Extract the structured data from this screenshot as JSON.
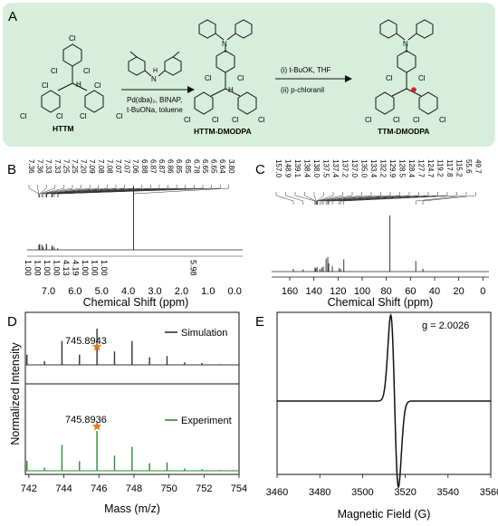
{
  "colors": {
    "panel_a_bg": "#d7eedd",
    "experiment": "#2e8b2e",
    "simulation": "#333333",
    "star": "#e07b1a",
    "radical_dot": "#e02020"
  },
  "panel_a": {
    "label": "A",
    "start_name": "HTTM",
    "mid_name": "HTTM-DMODPA",
    "end_name": "TTM-DMODPA",
    "step1_line1": "Pd(dba)₂, BINAP,",
    "step1_line2": "t-BuONa, toluene",
    "step2_line1": "(i) t-BuOK, THF",
    "step2_line2": "(ii) p-chloranil",
    "atom_cl": "Cl",
    "atom_n": "N",
    "atom_h": "H"
  },
  "panel_b": {
    "label": "B",
    "xlabel": "Chemical Shift (ppm)",
    "top_shifts": [
      "7.36",
      "7.36",
      "7.33",
      "7.33",
      "7.25",
      "7.25",
      "7.20",
      "7.09",
      "7.08",
      "7.08",
      "7.07",
      "7.07",
      "7.06",
      "6.88",
      "6.87",
      "6.87",
      "6.86",
      "6.85",
      "6.85",
      "6.78",
      "6.65",
      "6.65",
      "6.64",
      "3.80"
    ],
    "integrals": [
      "1.00",
      "1.00",
      "1.00",
      "1.00",
      "4.13",
      "4.19",
      "1.00",
      "1.00",
      "1.00",
      "5.98"
    ]
  },
  "panel_c": {
    "label": "C",
    "xlabel": "Chemical Shift (ppm)",
    "top_shifts": [
      "157.0",
      "148.9",
      "139.1",
      "138.4",
      "138.0",
      "137.5",
      "137.4",
      "137.2",
      "137.0",
      "135.0",
      "133.4",
      "132.2",
      "129.9",
      "128.5",
      "128.4",
      "127.7",
      "124.7",
      "119.2",
      "117.8",
      "115.2",
      "55.6",
      "49.7"
    ]
  },
  "panel_d": {
    "label": "D",
    "ylabel": "Normalized Intensity",
    "xlabel": "Mass (m/z)",
    "sim_label": "Simulation",
    "exp_label": "Experiment",
    "sim_peak": "745.8943",
    "exp_peak": "745.8936"
  },
  "panel_e": {
    "label": "E",
    "g_label": "g = 2.0026",
    "xlabel": "Magnetic Field (G)"
  },
  "chart_data": [
    {
      "type": "line",
      "title": "",
      "xlabel": "Chemical Shift (ppm)",
      "ylabel": "",
      "xlim": [
        7.8,
        -0.3
      ],
      "x_ticks": [
        7.0,
        6.0,
        5.0,
        4.0,
        3.0,
        2.0,
        1.0,
        0.0
      ],
      "series": [
        {
          "x": [
            7.36,
            7.33,
            7.25,
            7.2,
            7.08,
            7.07,
            6.87,
            6.85,
            6.78,
            6.65,
            3.8
          ],
          "values": [
            0.08,
            0.09,
            0.08,
            0.05,
            0.1,
            0.07,
            0.05,
            0.07,
            0.04,
            0.03,
            1.0
          ]
        }
      ]
    },
    {
      "type": "line",
      "title": "",
      "xlabel": "Chemical Shift (ppm)",
      "ylabel": "",
      "xlim": [
        175,
        -5
      ],
      "x_ticks": [
        160,
        140,
        120,
        100,
        80,
        60,
        40,
        20,
        0
      ],
      "series": [
        {
          "x": [
            157.0,
            148.9,
            139.1,
            138.4,
            137.4,
            135.0,
            133.4,
            132.2,
            129.9,
            128.5,
            127.7,
            124.7,
            119.2,
            117.8,
            115.2,
            77.0,
            55.6,
            49.7
          ],
          "values": [
            0.05,
            0.04,
            0.07,
            0.06,
            0.08,
            0.05,
            0.07,
            0.09,
            0.23,
            0.26,
            0.15,
            0.1,
            0.06,
            0.05,
            0.22,
            1.0,
            0.19,
            0.05
          ]
        }
      ]
    },
    {
      "type": "bar",
      "title": "",
      "xlabel": "Mass (m/z)",
      "ylabel": "Normalized Intensity",
      "xlim": [
        741.8,
        754
      ],
      "x_ticks": [
        742,
        744,
        746,
        748,
        750,
        752,
        754
      ],
      "series": [
        {
          "name": "Simulation",
          "x": [
            741.89,
            742.89,
            743.89,
            744.89,
            745.89,
            746.89,
            747.89,
            748.89,
            749.89,
            750.89,
            751.89,
            752.89
          ],
          "values": [
            0.28,
            0.1,
            0.66,
            0.28,
            1.0,
            0.37,
            0.66,
            0.21,
            0.24,
            0.07,
            0.05,
            0.02
          ]
        },
        {
          "name": "Experiment",
          "x": [
            741.89,
            742.89,
            743.89,
            744.89,
            745.89,
            746.89,
            747.89,
            748.89,
            749.89,
            750.89,
            751.89,
            752.89
          ],
          "values": [
            0.25,
            0.08,
            0.65,
            0.24,
            1.0,
            0.38,
            0.6,
            0.19,
            0.21,
            0.06,
            0.04,
            0.02
          ]
        }
      ]
    },
    {
      "type": "line",
      "title": "",
      "xlabel": "Magnetic Field (G)",
      "ylabel": "",
      "xlim": [
        3460,
        3560
      ],
      "x_ticks": [
        3460,
        3480,
        3500,
        3520,
        3540,
        3560
      ],
      "series": [
        {
          "name": "EPR",
          "x": [
            3460,
            3505,
            3510,
            3513.2,
            3515,
            3516.8,
            3520,
            3525,
            3560
          ],
          "values": [
            0,
            0.05,
            0.3,
            1.0,
            0,
            -1.0,
            -0.3,
            -0.05,
            0
          ]
        }
      ]
    }
  ]
}
